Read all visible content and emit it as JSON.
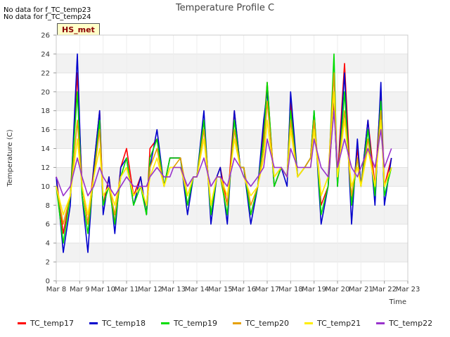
{
  "header": {
    "nodata1": "No data for f_TC_temp23",
    "nodata2": "No data for f_TC_temp24",
    "badge": "HS_met"
  },
  "chart_data": {
    "type": "line",
    "title": "Temperature Profile C",
    "xlabel": "Time",
    "ylabel": "Temperature (C)",
    "ylim": [
      0,
      26
    ],
    "xlim": [
      8,
      23
    ],
    "grid": true,
    "legend_position": "bottom",
    "x_ticks": [
      "Mar 8",
      "Mar 9",
      "Mar 10",
      "Mar 11",
      "Mar 12",
      "Mar 13",
      "Mar 14",
      "Mar 15",
      "Mar 16",
      "Mar 17",
      "Mar 18",
      "Mar 19",
      "Mar 20",
      "Mar 21",
      "Mar 22",
      "Mar 23"
    ],
    "y_ticks": [
      0,
      2,
      4,
      6,
      8,
      10,
      12,
      14,
      16,
      18,
      20,
      22,
      24,
      26
    ],
    "x": [
      8.0,
      8.3,
      8.6,
      8.9,
      9.1,
      9.35,
      9.6,
      9.85,
      10.0,
      10.25,
      10.5,
      10.75,
      11.0,
      11.3,
      11.6,
      11.85,
      12.0,
      12.3,
      12.6,
      12.85,
      13.0,
      13.3,
      13.6,
      13.85,
      14.0,
      14.3,
      14.6,
      14.85,
      15.0,
      15.3,
      15.6,
      15.85,
      16.0,
      16.3,
      16.6,
      16.85,
      17.0,
      17.3,
      17.6,
      17.85,
      18.0,
      18.3,
      18.6,
      18.85,
      19.0,
      19.3,
      19.6,
      19.85,
      20.0,
      20.3,
      20.6,
      20.85,
      21.0,
      21.3,
      21.6,
      21.85,
      22.0,
      22.3
    ],
    "series": [
      {
        "name": "TC_temp17",
        "color": "#ff0000",
        "values": [
          11,
          5,
          9,
          22,
          10,
          6,
          12,
          18,
          8,
          11,
          6,
          12,
          14,
          9,
          11,
          7,
          14,
          15,
          10,
          13,
          13,
          13,
          8,
          11,
          11,
          17,
          7,
          11,
          12,
          8,
          18,
          12,
          12,
          7,
          10,
          16,
          21,
          10,
          12,
          11,
          19,
          11,
          12,
          13,
          17,
          8,
          10,
          19,
          11,
          23,
          8,
          14,
          10,
          17,
          10,
          20,
          10,
          13
        ]
      },
      {
        "name": "TC_temp18",
        "color": "#0000cc",
        "values": [
          11,
          3,
          8,
          24,
          9,
          3,
          12,
          18,
          7,
          11,
          5,
          12,
          13,
          8,
          11,
          7,
          12,
          16,
          10,
          13,
          13,
          13,
          7,
          11,
          11,
          18,
          6,
          11,
          12,
          6,
          18,
          12,
          12,
          6,
          10,
          17,
          20,
          10,
          12,
          10,
          20,
          11,
          12,
          13,
          18,
          6,
          10,
          20,
          10,
          22,
          6,
          15,
          10,
          17,
          8,
          21,
          8,
          13
        ]
      },
      {
        "name": "TC_temp19",
        "color": "#00dd00",
        "values": [
          10,
          4,
          9,
          20,
          9,
          5,
          11,
          17,
          8,
          10,
          6,
          11,
          13,
          8,
          10,
          7,
          13,
          15,
          10,
          13,
          13,
          13,
          8,
          11,
          11,
          17,
          7,
          11,
          11,
          7,
          17,
          12,
          12,
          7,
          10,
          15,
          21,
          10,
          12,
          11,
          18,
          11,
          12,
          13,
          18,
          7,
          10,
          24,
          10,
          20,
          8,
          13,
          10,
          16,
          9,
          19,
          9,
          12
        ]
      },
      {
        "name": "TC_temp20",
        "color": "#e6a000",
        "values": [
          10,
          6,
          9,
          17,
          10,
          6,
          11,
          16,
          9,
          10,
          7,
          11,
          12,
          9,
          10,
          8,
          12,
          14,
          10,
          12,
          12,
          13,
          9,
          11,
          11,
          16,
          8,
          11,
          11,
          8,
          16,
          12,
          12,
          8,
          10,
          14,
          19,
          11,
          12,
          11,
          17,
          11,
          12,
          13,
          17,
          9,
          11,
          22,
          11,
          18,
          9,
          13,
          10,
          15,
          10,
          18,
          10,
          12
        ]
      },
      {
        "name": "TC_temp21",
        "color": "#ffee00",
        "values": [
          10,
          7,
          9,
          15,
          10,
          7,
          11,
          14,
          9,
          10,
          8,
          11,
          12,
          9,
          10,
          8,
          11,
          13,
          10,
          12,
          12,
          12,
          9,
          11,
          11,
          15,
          8,
          11,
          11,
          9,
          15,
          12,
          11,
          9,
          10,
          13,
          17,
          11,
          12,
          11,
          16,
          11,
          12,
          12,
          16,
          9,
          11,
          20,
          11,
          17,
          10,
          12,
          10,
          14,
          10,
          17,
          10,
          12
        ]
      },
      {
        "name": "TC_temp22",
        "color": "#9933cc",
        "values": [
          11,
          9,
          10,
          13,
          11,
          9,
          10,
          12,
          11,
          10,
          9,
          10,
          11,
          10,
          10,
          10,
          11,
          12,
          11,
          11,
          12,
          12,
          10,
          11,
          11,
          13,
          10,
          11,
          11,
          10,
          13,
          12,
          11,
          10,
          11,
          12,
          15,
          12,
          12,
          11,
          14,
          12,
          12,
          12,
          15,
          12,
          11,
          18,
          12,
          15,
          12,
          11,
          12,
          14,
          12,
          16,
          12,
          14
        ]
      }
    ]
  }
}
